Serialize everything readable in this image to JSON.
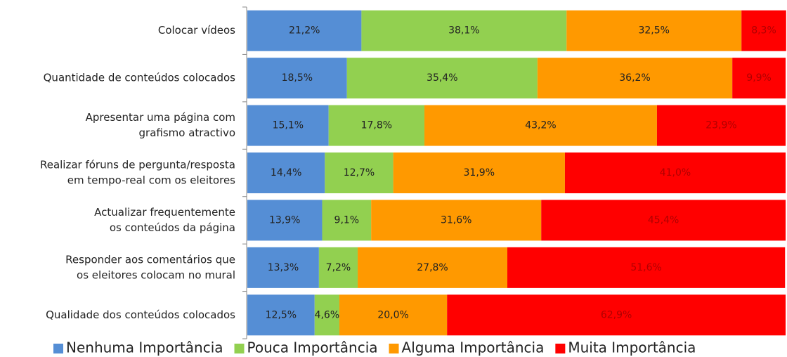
{
  "chart_data": {
    "type": "stacked_bar_horizontal",
    "categories": [
      [
        "Colocar vídeos"
      ],
      [
        "Quantidade de conteúdos colocados"
      ],
      [
        "Apresentar uma página com",
        "grafismo atractivo"
      ],
      [
        "Realizar fóruns de pergunta/resposta",
        "em tempo-real com os eleitores"
      ],
      [
        "Actualizar frequentemente",
        "os conteúdos da página"
      ],
      [
        "Responder aos comentários que",
        "os eleitores colocam no mural"
      ],
      [
        "Qualidade dos conteúdos colocados"
      ]
    ],
    "xlim": [
      0,
      100
    ],
    "series": [
      {
        "name": "Nenhuma Importância",
        "color": "#558ed5",
        "label_color": "#222222",
        "values": [
          21.2,
          18.5,
          15.1,
          14.4,
          13.9,
          13.3,
          12.5
        ],
        "value_labels": [
          "21,2%",
          "18,5%",
          "15,1%",
          "14,4%",
          "13,9%",
          "13,3%",
          "12,5%"
        ]
      },
      {
        "name": "Pouca Importância",
        "color": "#92d050",
        "label_color": "#222222",
        "values": [
          38.1,
          35.4,
          17.8,
          12.7,
          9.1,
          7.2,
          4.6
        ],
        "value_labels": [
          "38,1%",
          "35,4%",
          "17,8%",
          "12,7%",
          "9,1%",
          "7,2%",
          "4,6%"
        ]
      },
      {
        "name": "Alguma Importância",
        "color": "#ff9900",
        "label_color": "#222222",
        "values": [
          32.5,
          36.2,
          43.2,
          31.9,
          31.6,
          27.8,
          20.0
        ],
        "value_labels": [
          "32,5%",
          "36,2%",
          "43,2%",
          "31,9%",
          "31,6%",
          "27,8%",
          "20,0%"
        ]
      },
      {
        "name": "Muita Importância",
        "color": "#ff0000",
        "label_color": "#b00000",
        "values": [
          8.3,
          9.9,
          23.9,
          41.0,
          45.4,
          51.6,
          62.9
        ],
        "value_labels": [
          "8,3%",
          "9,9%",
          "23,9%",
          "41,0%",
          "45,4%",
          "51,6%",
          "62,9%"
        ]
      }
    ],
    "legend": "bottom"
  }
}
